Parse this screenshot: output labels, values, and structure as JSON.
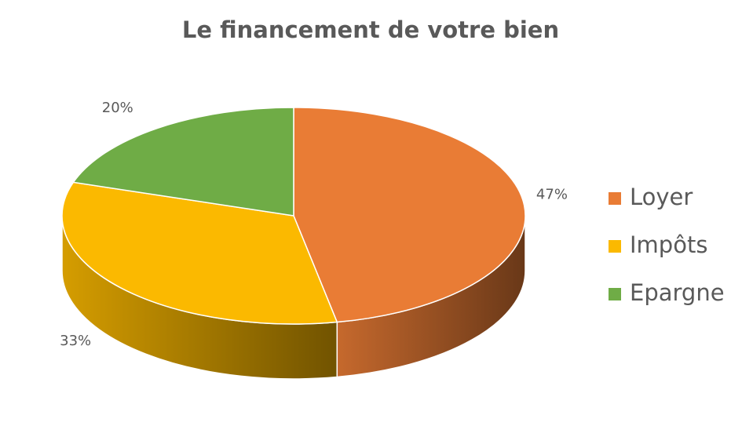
{
  "chart_data": {
    "type": "pie3d",
    "title": "Le financement de votre bien",
    "categories": [
      "Loyer",
      "Impôts",
      "Epargne"
    ],
    "values": [
      47,
      33,
      20
    ],
    "value_labels": [
      "47%",
      "33%",
      "20%"
    ],
    "colors": [
      "#e97c35",
      "#fbb900",
      "#6fac46"
    ],
    "legend": "right"
  }
}
